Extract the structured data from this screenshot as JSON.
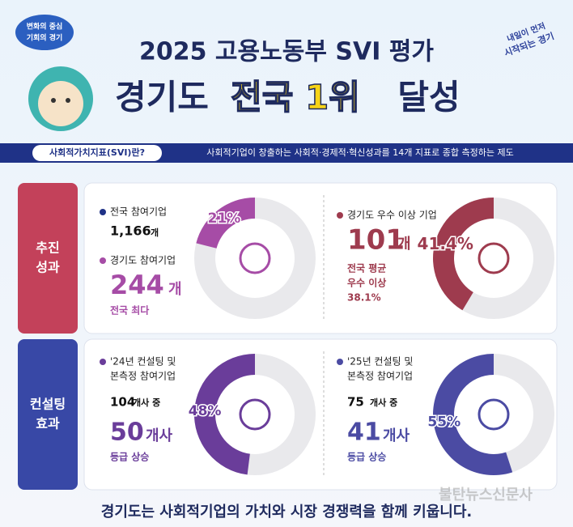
{
  "header": {
    "logo_left": [
      "변화의 중심",
      "기회의 경기"
    ],
    "logo_right": [
      "내일이 먼저",
      "시작되는 경기"
    ],
    "title": "2025 고용노동부 SVI 평가",
    "headline": [
      "경기도",
      "전국 1위",
      "달성"
    ]
  },
  "definition": {
    "label": "사회적가치지표(SVI)란?",
    "text": "사회적기업이 창출하는 사회적·경제적·혁신성과를 14개 지표로 종합 측정하는 제도"
  },
  "sections": [
    {
      "label": [
        "추진",
        "성과"
      ],
      "panels": [
        {
          "lines": [
            "전국 참여기업",
            "1,166",
            "개",
            "경기도 참여기업",
            "244",
            "개",
            "전국 최다"
          ],
          "donut": {
            "value": 21,
            "label": "21%"
          }
        },
        {
          "lines": [
            "경기도 우수 이상 기업",
            "101",
            "개",
            "전국 평균",
            "우수 이상",
            "38.1%"
          ],
          "donut": {
            "value": 41.4,
            "label": "41.4%"
          }
        }
      ]
    },
    {
      "label": [
        "컨설팅",
        "효과"
      ],
      "panels": [
        {
          "lines": [
            "'24년 컨설팅 및",
            "본측정 참여기업",
            "104",
            "개사 중",
            "50",
            "개사",
            "등급 상승"
          ],
          "donut": {
            "value": 48,
            "label": "48%"
          }
        },
        {
          "lines": [
            "'25년 컨설팅 및",
            "본측정 참여기업",
            "75",
            "개사 중",
            "41",
            "개사",
            "등급 상승"
          ],
          "donut": {
            "value": 55,
            "label": "55%"
          }
        }
      ]
    }
  ],
  "footer": "경기도는 사회적기업의 가치와 시장 경쟁력을 함께 키웁니다.",
  "watermark": "불탄뉴스신문사"
}
